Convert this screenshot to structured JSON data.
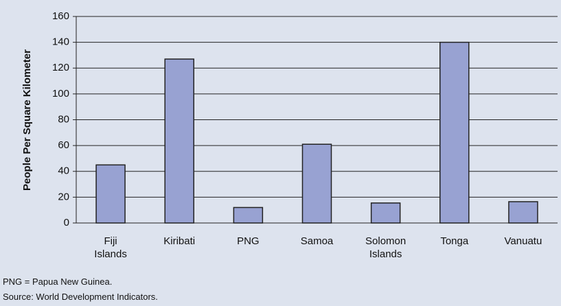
{
  "chart_data": {
    "type": "bar",
    "y_label": "People Per Square Kilometer",
    "categories": [
      "Fiji Islands",
      "Kiribati",
      "PNG",
      "Samoa",
      "Solomon Islands",
      "Tonga",
      "Vanuatu"
    ],
    "values": [
      45,
      127,
      12,
      61,
      15.5,
      140,
      16.5
    ],
    "color": "#98a2d2",
    "ylim": [
      0,
      160
    ],
    "yticks": [
      0,
      20,
      40,
      60,
      80,
      100,
      120,
      140,
      160
    ],
    "grid": true
  },
  "notes": [
    "PNG = Papua New Guinea.",
    "Source: World Development Indicators."
  ]
}
